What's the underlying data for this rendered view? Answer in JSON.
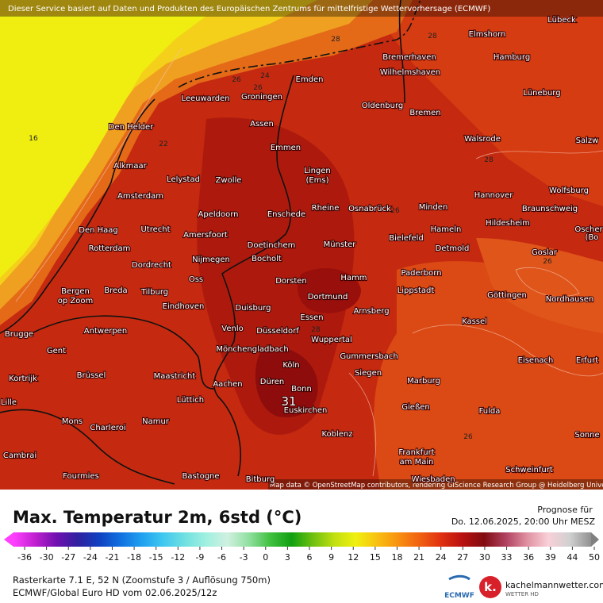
{
  "header": {
    "notice": "Dieser Service basiert auf Daten und Produkten des Europäischen Zentrums für mittelfristige Wettervorhersage (ECMWF)"
  },
  "map": {
    "cities": [
      "Lübeck",
      "Elmshorn",
      "Hamburg",
      "Bremerhaven",
      "Wilhelmshaven",
      "Emden",
      "Leeuwarden",
      "Groningen",
      "Lüneburg",
      "Oldenburg",
      "Bremen",
      "Den Helder",
      "Assen",
      "Walsrode",
      "Salzw",
      "Emmen",
      "Alkmaar",
      "Lingen",
      "(Ems)",
      "Lelystad",
      "Zwolle",
      "Hannover",
      "Wolfsburg",
      "Amsterdam",
      "Rheine",
      "Osnabrück",
      "Minden",
      "Braunschweig",
      "Apeldoorn",
      "Enschede",
      "Hildesheim",
      "Den Haag",
      "Utrecht",
      "Hameln",
      "Amersfoort",
      "Bielefeld",
      "Oscher",
      "(Bo",
      "Rotterdam",
      "Doetinchem",
      "Münster",
      "Detmold",
      "Goslar",
      "Dordrecht",
      "Nijmegen",
      "Bocholt",
      "Paderborn",
      "Bergen",
      "op Zoom",
      "Breda",
      "Oss",
      "Dorsten",
      "Hamm",
      "Tilburg",
      "Lippstadt",
      "Göttingen",
      "Nordhausen",
      "Dortmund",
      "Eindhoven",
      "Duisburg",
      "Arnsberg",
      "Venlo",
      "Essen",
      "Kassel",
      "Brugge",
      "Antwerpen",
      "Düsseldorf",
      "Wuppertal",
      "Gent",
      "Mönchengladbach",
      "Gummersbach",
      "Eisenach",
      "Erfurt",
      "Köln",
      "Siegen",
      "Brüssel",
      "Maastricht",
      "Kortrijk",
      "Düren",
      "Marburg",
      "Aachen",
      "Bonn",
      "Lille",
      "Lüttich",
      "Euskirchen",
      "Gießen",
      "Fulda",
      "Mons",
      "Namur",
      "Charleroi",
      "Koblenz",
      "Sonne",
      "Cambrai",
      "Frankfurt",
      "am Main",
      "Schweinfurt",
      "Fourmies",
      "Bastogne",
      "Bitburg",
      "Wiesbaden"
    ],
    "contour_labels": [
      16,
      22,
      24,
      26,
      28,
      28,
      26,
      26,
      26,
      28,
      28,
      26
    ],
    "max_label": 31,
    "attribution": "Map data © OpenStreetMap contributors, rendering GIScience Research Group @ Heidelberg University"
  },
  "legend": {
    "title": "Max. Temperatur 2m, 6std (°C)",
    "forecast_label": "Prognose für",
    "forecast_time": "Do. 12.06.2025, 20:00 Uhr MESZ",
    "ticks": [
      -36,
      -30,
      -27,
      -24,
      -21,
      -18,
      -15,
      -12,
      -9,
      -6,
      -3,
      0,
      3,
      6,
      9,
      12,
      15,
      18,
      21,
      24,
      27,
      30,
      33,
      36,
      39,
      44,
      50
    ],
    "info": [
      "Rasterkarte 7.1 E, 52 N (Zoomstufe 3 / Auflösung 750m)",
      "ECMWF/Global Euro HD vom 02.06.2025/12z"
    ],
    "logos": [
      "ECMWF",
      "kachelmannwetter.com",
      "WETTER HD"
    ]
  }
}
